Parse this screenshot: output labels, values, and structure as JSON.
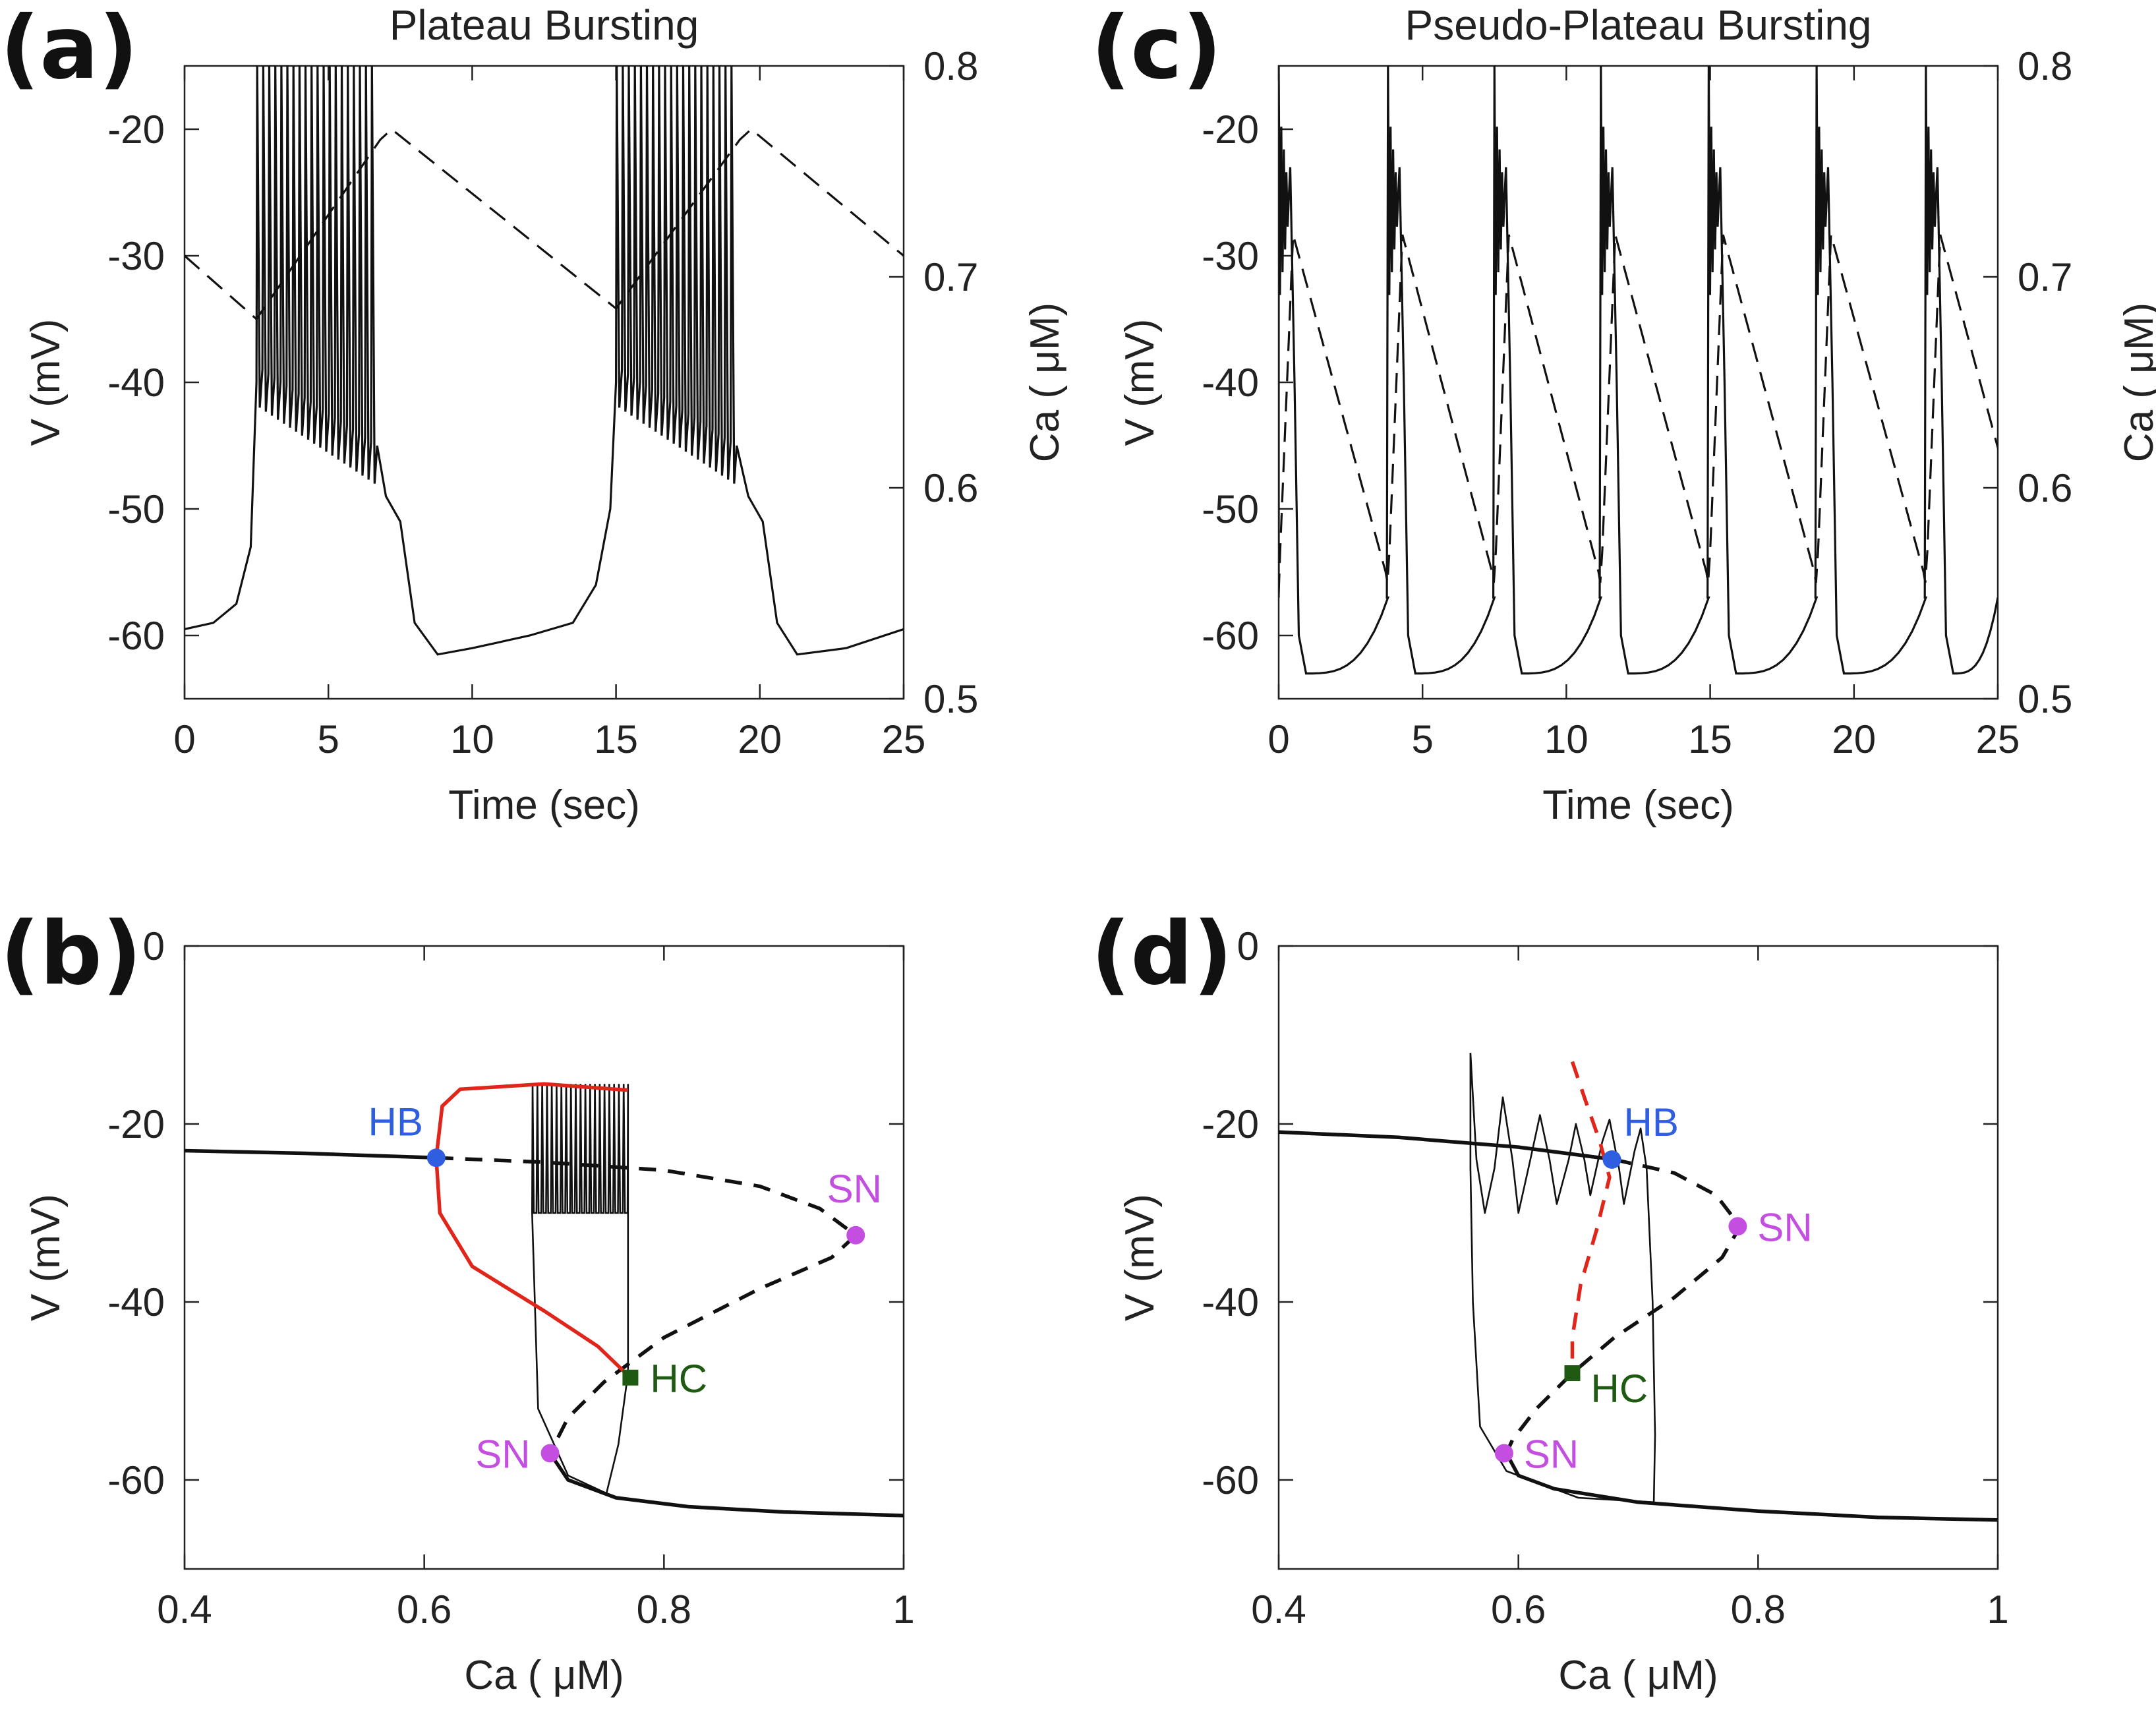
{
  "colors": {
    "trace": "#111111",
    "red_branch": "#e0251b",
    "hb": "#2f5fe0",
    "sn": "#c34ee0",
    "hc": "#1f5a12"
  },
  "chart_data": [
    {
      "id": "a",
      "letter": "(a)",
      "type": "line",
      "title": "Plateau Bursting",
      "xlabel": "Time (sec)",
      "ylabel": "V (mV)",
      "y2label": "Ca ( μM)",
      "xlim": [
        0,
        25
      ],
      "ylim": [
        -65,
        -15
      ],
      "y2lim": [
        0.5,
        0.8
      ],
      "xticks": [
        0,
        5,
        10,
        15,
        20,
        25
      ],
      "yticks": [
        -60,
        -50,
        -40,
        -30,
        -20
      ],
      "y2ticks": [
        0.5,
        0.6,
        0.7,
        0.8
      ],
      "grid": false,
      "series": [
        {
          "kind": "V trace (solid, left axis)",
          "bursts": [
            {
              "start": 2.5,
              "end": 6.7,
              "spikes": 20,
              "peak": -15,
              "trough_start": -42,
              "trough_end": -48
            },
            {
              "start": 15.0,
              "end": 19.2,
              "spikes": 20,
              "peak": -15,
              "trough_start": -42,
              "trough_end": -48
            }
          ],
          "points": [
            [
              0,
              -59.5
            ],
            [
              1,
              -59
            ],
            [
              1.8,
              -57.5
            ],
            [
              2.3,
              -53
            ],
            [
              2.5,
              -40
            ],
            [
              7.0,
              -49
            ],
            [
              7.5,
              -51
            ],
            [
              8.0,
              -59
            ],
            [
              8.8,
              -61.5
            ],
            [
              10,
              -61
            ],
            [
              12,
              -60
            ],
            [
              13.5,
              -59
            ],
            [
              14.3,
              -56
            ],
            [
              14.8,
              -50
            ],
            [
              15.0,
              -40
            ],
            [
              19.6,
              -49
            ],
            [
              20.1,
              -51
            ],
            [
              20.6,
              -59
            ],
            [
              21.3,
              -61.5
            ],
            [
              23,
              -61
            ],
            [
              25,
              -59.5
            ]
          ]
        },
        {
          "kind": "Ca trace (dashed, right axis)",
          "points": [
            [
              0,
              0.71
            ],
            [
              2.5,
              0.68
            ],
            [
              6.8,
              0.765
            ],
            [
              7.2,
              0.77
            ],
            [
              15.0,
              0.685
            ],
            [
              19.3,
              0.765
            ],
            [
              19.7,
              0.77
            ],
            [
              25,
              0.71
            ]
          ]
        }
      ]
    },
    {
      "id": "b",
      "letter": "(b)",
      "type": "line",
      "title": "",
      "xlabel": "Ca ( μM)",
      "ylabel": "V (mV)",
      "xlim": [
        0.4,
        1.0
      ],
      "ylim": [
        -70,
        0
      ],
      "xticks": [
        0.4,
        0.6,
        0.8,
        1.0
      ],
      "xtick_labels": [
        "0.4",
        "0.6",
        "0.8",
        "1"
      ],
      "yticks": [
        -60,
        -40,
        -20,
        0
      ],
      "grid": false,
      "bifurcation": {
        "upper_stable": [
          [
            0.4,
            -23
          ],
          [
            0.5,
            -23.3
          ],
          [
            0.61,
            -23.8
          ]
        ],
        "middle_unstable": [
          [
            0.61,
            -23.8
          ],
          [
            0.7,
            -24.3
          ],
          [
            0.8,
            -25.2
          ],
          [
            0.88,
            -27
          ],
          [
            0.93,
            -29.5
          ],
          [
            0.96,
            -32.5
          ],
          [
            0.94,
            -35
          ],
          [
            0.88,
            -38.5
          ],
          [
            0.8,
            -44
          ],
          [
            0.75,
            -49
          ],
          [
            0.72,
            -53
          ],
          [
            0.705,
            -57
          ]
        ],
        "lower_stable": [
          [
            0.705,
            -57
          ],
          [
            0.72,
            -60
          ],
          [
            0.76,
            -62
          ],
          [
            0.82,
            -63
          ],
          [
            0.9,
            -63.6
          ],
          [
            1.0,
            -64
          ]
        ],
        "red_max": [
          [
            0.61,
            -23.8
          ],
          [
            0.615,
            -18
          ],
          [
            0.63,
            -16.1
          ],
          [
            0.7,
            -15.5
          ],
          [
            0.77,
            -16.2
          ]
        ],
        "red_min": [
          [
            0.61,
            -23.8
          ],
          [
            0.613,
            -30
          ],
          [
            0.64,
            -36
          ],
          [
            0.7,
            -41
          ],
          [
            0.745,
            -45
          ],
          [
            0.772,
            -48.5
          ]
        ],
        "spikes": {
          "ca_start": 0.69,
          "ca_end": 0.77,
          "count": 20,
          "peak": -15.5,
          "trough": -48
        },
        "return": [
          [
            0.77,
            -48
          ],
          [
            0.762,
            -56
          ],
          [
            0.752,
            -61.5
          ],
          [
            0.72,
            -59.5
          ],
          [
            0.695,
            -52
          ],
          [
            0.69,
            -30
          ]
        ],
        "points": [
          {
            "label": "HB",
            "ca": 0.61,
            "v": -23.8,
            "marker": "circle",
            "color": "hb",
            "label_pos": "upper-left"
          },
          {
            "label": "SN",
            "ca": 0.96,
            "v": -32.5,
            "marker": "circle",
            "color": "sn",
            "label_pos": "above"
          },
          {
            "label": "SN",
            "ca": 0.705,
            "v": -57,
            "marker": "circle",
            "color": "sn",
            "label_pos": "left"
          },
          {
            "label": "HC",
            "ca": 0.772,
            "v": -48.5,
            "marker": "square",
            "color": "hc",
            "label_pos": "right"
          }
        ]
      }
    },
    {
      "id": "c",
      "letter": "(c)",
      "type": "line",
      "title": "Pseudo-Plateau Bursting",
      "xlabel": "Time (sec)",
      "ylabel": "V (mV)",
      "y2label": "Ca ( μM)",
      "xlim": [
        0,
        25
      ],
      "ylim": [
        -65,
        -15
      ],
      "y2lim": [
        0.5,
        0.8
      ],
      "xticks": [
        0,
        5,
        10,
        15,
        20,
        25
      ],
      "yticks": [
        -60,
        -50,
        -40,
        -30,
        -20
      ],
      "y2ticks": [
        0.5,
        0.6,
        0.7,
        0.8
      ],
      "grid": false,
      "series": [
        {
          "kind": "V trace (solid, left axis)",
          "burst_starts": [
            0.0,
            3.8,
            7.5,
            11.2,
            14.95,
            18.7,
            22.5
          ],
          "active_duration": 0.4,
          "peak": -15,
          "plateau": -25,
          "minimum": -63,
          "pre_burst_level": -57
        },
        {
          "kind": "Ca trace (dashed, right axis)",
          "ca_max": 0.72,
          "ca_min": 0.555,
          "ca_start": 0.55
        }
      ]
    },
    {
      "id": "d",
      "letter": "(d)",
      "type": "line",
      "title": "",
      "xlabel": "Ca ( μM)",
      "ylabel": "V (mV)",
      "xlim": [
        0.4,
        1.0
      ],
      "ylim": [
        -70,
        0
      ],
      "xticks": [
        0.4,
        0.6,
        0.8,
        1.0
      ],
      "xtick_labels": [
        "0.4",
        "0.6",
        "0.8",
        "1"
      ],
      "yticks": [
        -60,
        -40,
        -20,
        0
      ],
      "grid": false,
      "bifurcation": {
        "upper_stable": [
          [
            0.4,
            -20.9
          ],
          [
            0.5,
            -21.5
          ],
          [
            0.6,
            -22.6
          ],
          [
            0.68,
            -24
          ]
        ],
        "middle_unstable": [
          [
            0.68,
            -24
          ],
          [
            0.73,
            -25.5
          ],
          [
            0.765,
            -28
          ],
          [
            0.785,
            -31.5
          ],
          [
            0.77,
            -35
          ],
          [
            0.73,
            -39.5
          ],
          [
            0.68,
            -44
          ],
          [
            0.645,
            -48
          ],
          [
            0.615,
            -52
          ],
          [
            0.595,
            -55.5
          ],
          [
            0.59,
            -57
          ]
        ],
        "lower_stable": [
          [
            0.59,
            -57
          ],
          [
            0.6,
            -59.5
          ],
          [
            0.63,
            -61
          ],
          [
            0.7,
            -62.5
          ],
          [
            0.8,
            -63.5
          ],
          [
            0.9,
            -64.2
          ],
          [
            1.0,
            -64.5
          ]
        ],
        "red_branch": [
          [
            0.645,
            -13
          ],
          [
            0.655,
            -17
          ],
          [
            0.668,
            -22
          ],
          [
            0.676,
            -26
          ],
          [
            0.665,
            -32
          ],
          [
            0.652,
            -38
          ],
          [
            0.645,
            -44
          ],
          [
            0.645,
            -48
          ]
        ],
        "trajectory": [
          [
            0.56,
            -12
          ],
          [
            0.565,
            -24
          ],
          [
            0.572,
            -30
          ],
          [
            0.58,
            -25
          ],
          [
            0.587,
            -17
          ],
          [
            0.595,
            -24
          ],
          [
            0.6,
            -30
          ],
          [
            0.61,
            -24
          ],
          [
            0.618,
            -19
          ],
          [
            0.626,
            -24
          ],
          [
            0.632,
            -29
          ],
          [
            0.642,
            -24
          ],
          [
            0.648,
            -20
          ],
          [
            0.655,
            -24
          ],
          [
            0.66,
            -28
          ],
          [
            0.67,
            -22
          ],
          [
            0.676,
            -19.5
          ],
          [
            0.684,
            -25
          ],
          [
            0.688,
            -29
          ],
          [
            0.697,
            -23
          ],
          [
            0.702,
            -20.5
          ],
          [
            0.707,
            -25
          ],
          [
            0.712,
            -40
          ],
          [
            0.714,
            -55
          ],
          [
            0.713,
            -62.5
          ],
          [
            0.65,
            -62
          ],
          [
            0.59,
            -59
          ],
          [
            0.568,
            -54
          ],
          [
            0.562,
            -40
          ],
          [
            0.56,
            -25
          ],
          [
            0.56,
            -12
          ]
        ],
        "points": [
          {
            "label": "HB",
            "ca": 0.678,
            "v": -24,
            "marker": "circle",
            "color": "hb",
            "label_pos": "upper-right"
          },
          {
            "label": "SN",
            "ca": 0.783,
            "v": -31.5,
            "marker": "circle",
            "color": "sn",
            "label_pos": "right"
          },
          {
            "label": "SN",
            "ca": 0.588,
            "v": -57,
            "marker": "circle",
            "color": "sn",
            "label_pos": "right"
          },
          {
            "label": "HC",
            "ca": 0.645,
            "v": -48,
            "marker": "square",
            "color": "hc",
            "label_pos": "lower-right"
          }
        ]
      }
    }
  ]
}
